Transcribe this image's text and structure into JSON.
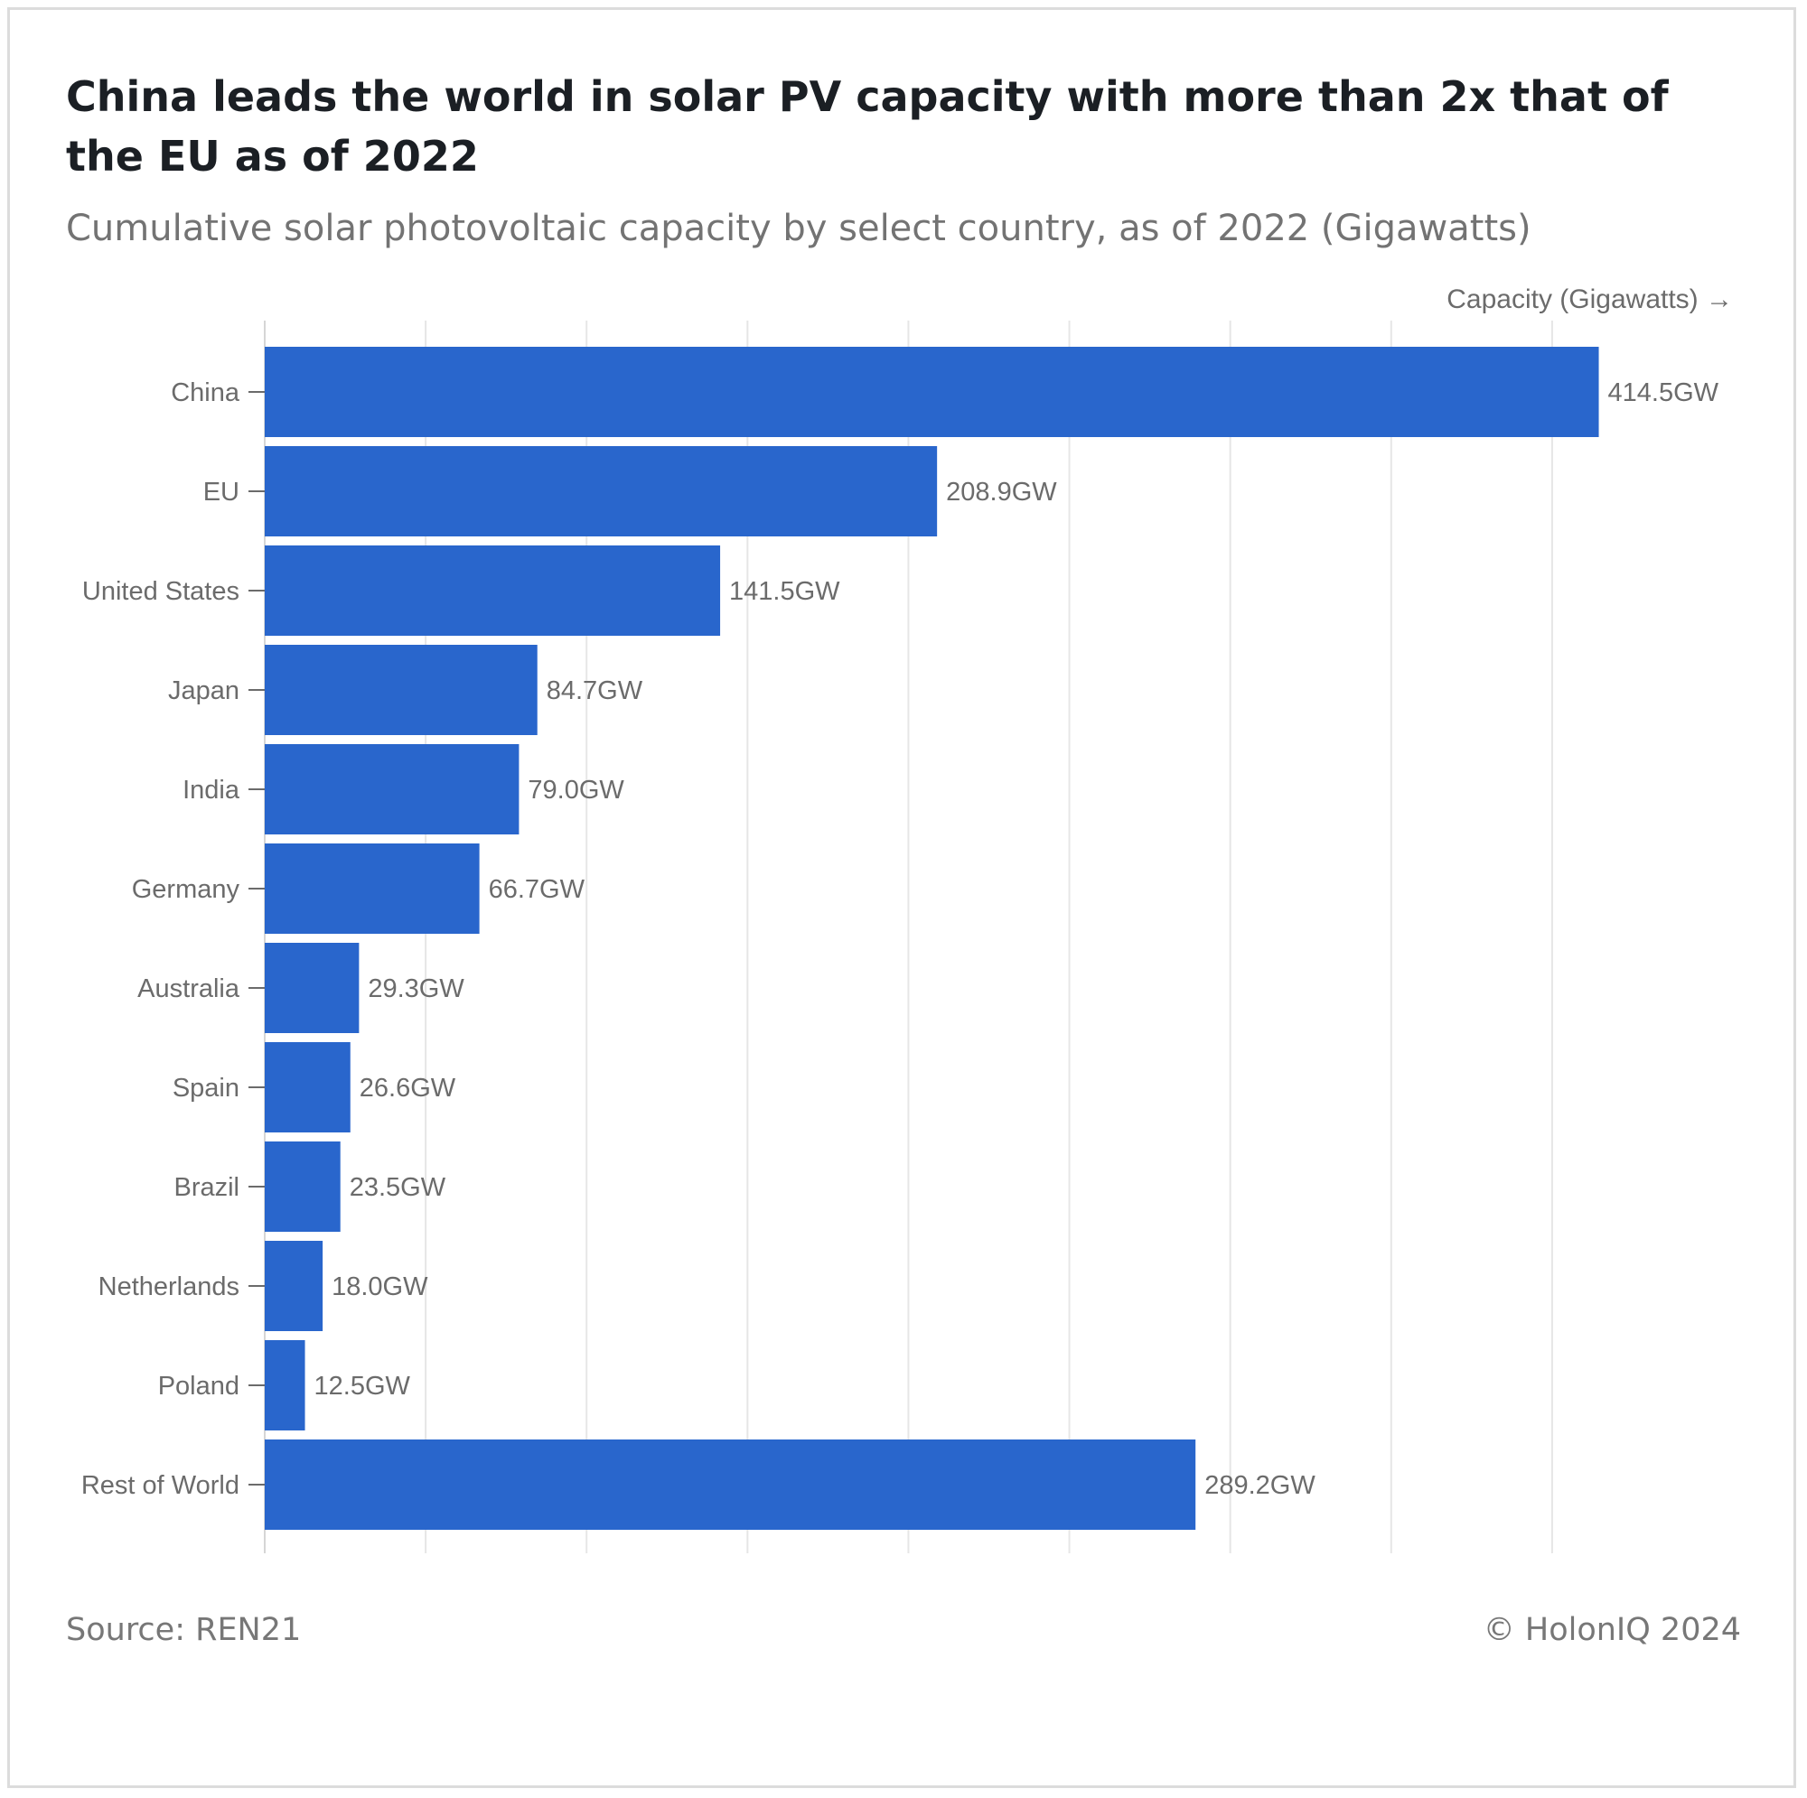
{
  "chart_data": {
    "type": "bar",
    "orientation": "horizontal",
    "title": "China leads the world in solar PV capacity with more than 2x that of the EU as of 2022",
    "subtitle": "Cumulative solar photovoltaic capacity by select country, as of 2022 (Gigawatts)",
    "xlabel": "Capacity (Gigawatts) →",
    "ylabel": "",
    "categories": [
      "China",
      "EU",
      "United States",
      "Japan",
      "India",
      "Germany",
      "Australia",
      "Spain",
      "Brazil",
      "Netherlands",
      "Poland",
      "Rest of World"
    ],
    "values": [
      414.5,
      208.9,
      141.5,
      84.7,
      79.0,
      66.7,
      29.3,
      26.6,
      23.5,
      18.0,
      12.5,
      289.2
    ],
    "value_labels": [
      "414.5GW",
      "208.9GW",
      "141.5GW",
      "84.7GW",
      "79.0GW",
      "66.7GW",
      "29.3GW",
      "26.6GW",
      "23.5GW",
      "18.0GW",
      "12.5GW",
      "289.2GW"
    ],
    "xlim": [
      0,
      450
    ],
    "grid": true,
    "x_tick_labels_shown": false,
    "bar_color": "#2966cc",
    "grid_color": "#e6e6e6"
  },
  "footer": {
    "source": "Source: REN21",
    "copyright": "© HolonIQ 2024"
  }
}
